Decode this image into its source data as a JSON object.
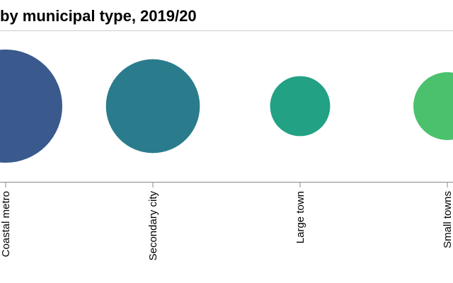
{
  "chart_data": {
    "type": "bubble",
    "title": "by municipal type, 2019/20",
    "categories": [
      "Coastal metro",
      "Secondary city",
      "Large town",
      "Small towns"
    ],
    "values": [
      64,
      44,
      18,
      23
    ],
    "colors": [
      "#3a5a8e",
      "#2a7c8d",
      "#22a184",
      "#4bc16d"
    ]
  }
}
